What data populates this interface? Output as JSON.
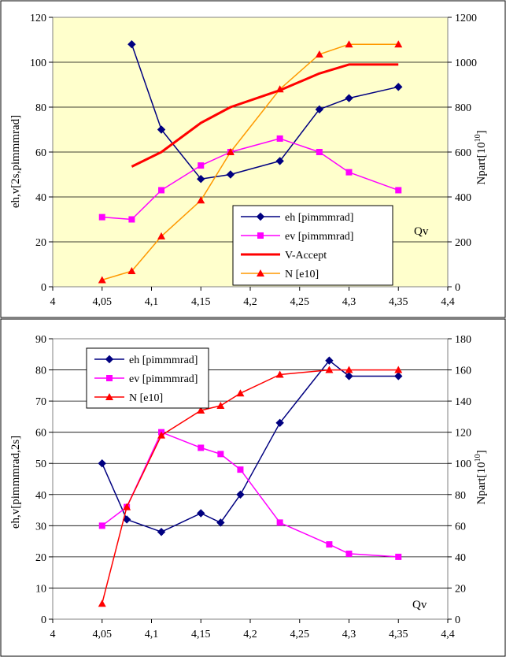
{
  "chart_data": [
    {
      "type": "line",
      "background": "#ffffcc",
      "x_ticks": [
        "4",
        "4,05",
        "4,1",
        "4,15",
        "4,2",
        "4,25",
        "4,3",
        "4,35",
        "4,4"
      ],
      "xlim": [
        4,
        4.4
      ],
      "ylim_left": [
        0,
        120
      ],
      "y_ticks_left": [
        "0",
        "20",
        "40",
        "60",
        "80",
        "100",
        "120"
      ],
      "ylim_right": [
        0,
        1200
      ],
      "y_ticks_right": [
        "0",
        "200",
        "400",
        "600",
        "800",
        "1000",
        "1200"
      ],
      "ylabel_left": "eh,v[2s,pimmmrad]",
      "ylabel_right_base": "Npart[10",
      "ylabel_right_sup": "10",
      "ylabel_right_end": "]",
      "annotation": "Qv",
      "legend_position": "bottom-right",
      "series": [
        {
          "name": "eh [pimmmrad]",
          "color": "#000080",
          "marker": "diamond",
          "axis": "left",
          "x": [
            4.08,
            4.11,
            4.15,
            4.18,
            4.23,
            4.27,
            4.3,
            4.35
          ],
          "y": [
            108,
            70,
            48,
            50,
            56,
            79,
            84,
            89
          ]
        },
        {
          "name": "ev [pimmmrad]",
          "color": "#ff00ff",
          "marker": "square",
          "axis": "left",
          "x": [
            4.05,
            4.08,
            4.11,
            4.15,
            4.18,
            4.23,
            4.27,
            4.3,
            4.35
          ],
          "y": [
            31,
            30,
            43,
            54,
            60,
            66,
            60,
            51,
            43
          ]
        },
        {
          "name": "V-Accept",
          "color": "#ff0000",
          "marker": "none",
          "axis": "left",
          "width": 3,
          "x": [
            4.08,
            4.11,
            4.15,
            4.18,
            4.23,
            4.27,
            4.3,
            4.35
          ],
          "y": [
            53.5,
            60,
            73,
            80,
            87.5,
            95,
            99,
            99
          ]
        },
        {
          "name": "N [e10]",
          "color": "#ff9900",
          "marker": "triangle",
          "marker_color": "#ff0000",
          "axis": "right",
          "x": [
            4.05,
            4.08,
            4.11,
            4.15,
            4.18,
            4.23,
            4.27,
            4.3,
            4.35
          ],
          "y": [
            30,
            70,
            225,
            385,
            600,
            880,
            1035,
            1080,
            1080
          ]
        }
      ]
    },
    {
      "type": "line",
      "background": "#ffffff",
      "x_ticks": [
        "4",
        "4,05",
        "4,1",
        "4,15",
        "4,2",
        "4,25",
        "4,3",
        "4,35",
        "4,4"
      ],
      "xlim": [
        4,
        4.4
      ],
      "ylim_left": [
        0,
        90
      ],
      "y_ticks_left": [
        "0",
        "10",
        "20",
        "30",
        "40",
        "50",
        "60",
        "70",
        "80",
        "90"
      ],
      "ylim_right": [
        0,
        180
      ],
      "y_ticks_right": [
        "0",
        "20",
        "40",
        "60",
        "80",
        "100",
        "120",
        "140",
        "160",
        "180"
      ],
      "ylabel_left": "eh,v[pimmmrad,2s]",
      "ylabel_right_base": "Npart[10",
      "ylabel_right_sup": "10",
      "ylabel_right_end": "]",
      "annotation": "Qv",
      "legend_position": "top-left",
      "series": [
        {
          "name": "eh [pimmmrad]",
          "color": "#000080",
          "marker": "diamond",
          "axis": "left",
          "x": [
            4.05,
            4.075,
            4.11,
            4.15,
            4.17,
            4.19,
            4.23,
            4.28,
            4.3,
            4.35
          ],
          "y": [
            50,
            32,
            28,
            34,
            31,
            40,
            63,
            83,
            78,
            78
          ]
        },
        {
          "name": "ev [pimmmrad]",
          "color": "#ff00ff",
          "marker": "square",
          "axis": "left",
          "x": [
            4.05,
            4.075,
            4.11,
            4.15,
            4.17,
            4.19,
            4.23,
            4.28,
            4.3,
            4.35
          ],
          "y": [
            30,
            36,
            60,
            55,
            53,
            48,
            31,
            24,
            21,
            20
          ]
        },
        {
          "name": "N [e10]",
          "color": "#ff0000",
          "marker": "triangle",
          "axis": "right",
          "x": [
            4.05,
            4.075,
            4.11,
            4.15,
            4.17,
            4.19,
            4.23,
            4.28,
            4.3,
            4.35
          ],
          "y": [
            10,
            72,
            118,
            134,
            137,
            145,
            157,
            160,
            160,
            160
          ]
        }
      ]
    }
  ]
}
